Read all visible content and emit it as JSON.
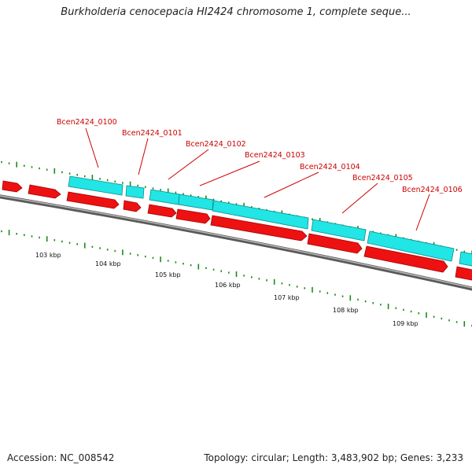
{
  "title": "Burkholderia cenocepacia HI2424 chromosome 1, complete seque...",
  "footer": {
    "accession": "Accession: NC_008542",
    "summary": "Topology: circular; Length: 3,483,902 bp; Genes: 3,233"
  },
  "colors": {
    "forward_gene": "#22e5e5",
    "reverse_gene": "#ee1111",
    "backbone": "#888888",
    "ticks": "#1a8a1a",
    "label": "#cc0000"
  },
  "gene_labels": [
    "Bcen2424_0100",
    "Bcen2424_0101",
    "Bcen2424_0102",
    "Bcen2424_0103",
    "Bcen2424_0104",
    "Bcen2424_0105",
    "Bcen2424_0106"
  ],
  "kbp_labels": [
    "103 kbp",
    "104 kbp",
    "105 kbp",
    "106 kbp",
    "107 kbp",
    "108 kbp",
    "109 kbp"
  ]
}
